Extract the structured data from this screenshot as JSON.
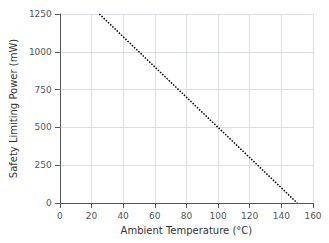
{
  "chart_data": {
    "type": "line",
    "x": [
      25,
      150
    ],
    "values": [
      1250,
      0
    ],
    "xlabel": "Ambient Temperature (°C)",
    "ylabel": "Safety Limiting Power (mW)",
    "color": "#000000",
    "line_style": "dotted",
    "xlim": [
      0,
      160
    ],
    "ylim": [
      0,
      1250
    ],
    "xticks": [
      0,
      20,
      40,
      60,
      80,
      100,
      120,
      140,
      160
    ],
    "yticks": [
      0,
      250,
      500,
      750,
      1000,
      1250
    ],
    "grid": true
  }
}
